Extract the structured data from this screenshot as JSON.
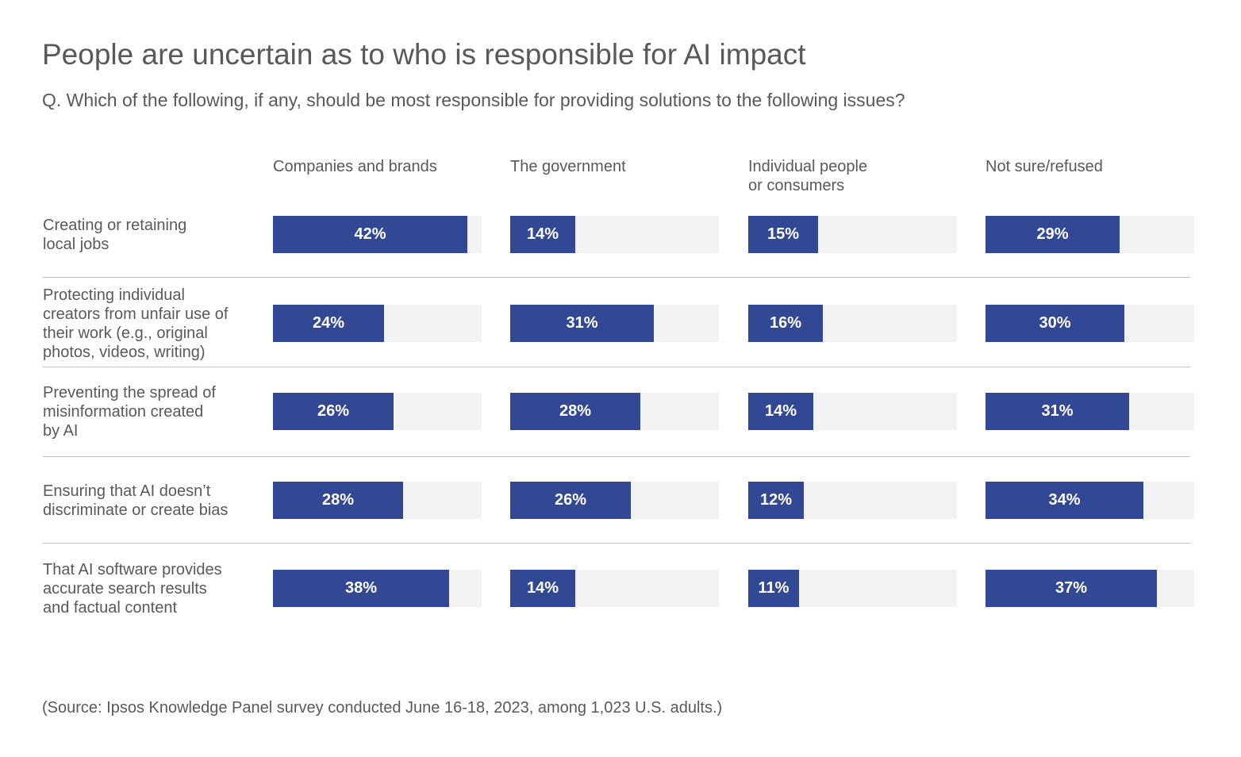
{
  "chart_data": {
    "type": "bar",
    "title": "People are uncertain as to who is responsible for AI impact",
    "subtitle": "Q. Which of the following, if any, should be most responsible for providing solutions to the following issues?",
    "columns": [
      "Companies and brands",
      "The government",
      "Individual people\nor consumers",
      "Not sure/refused"
    ],
    "categories": [
      "Creating or retaining\nlocal jobs",
      "Protecting individual\ncreators from unfair use of\ntheir work (e.g., original\nphotos, videos, writing)",
      "Preventing the spread of\nmisinformation created\nby AI",
      "Ensuring that AI doesn’t\ndiscriminate or create bias",
      "That AI software provides\naccurate search results\nand factual content"
    ],
    "values": [
      [
        42,
        14,
        15,
        29
      ],
      [
        24,
        31,
        16,
        30
      ],
      [
        26,
        28,
        14,
        31
      ],
      [
        28,
        26,
        12,
        34
      ],
      [
        38,
        14,
        11,
        37
      ]
    ],
    "value_suffix": "%",
    "xlim": [
      0,
      45
    ],
    "grid": false,
    "colors": {
      "bar": "#334894",
      "track": "#f2f2f2",
      "text": "#595959"
    },
    "source": "(Source: Ipsos Knowledge Panel survey conducted June 16-18, 2023, among 1,023 U.S. adults.)"
  }
}
